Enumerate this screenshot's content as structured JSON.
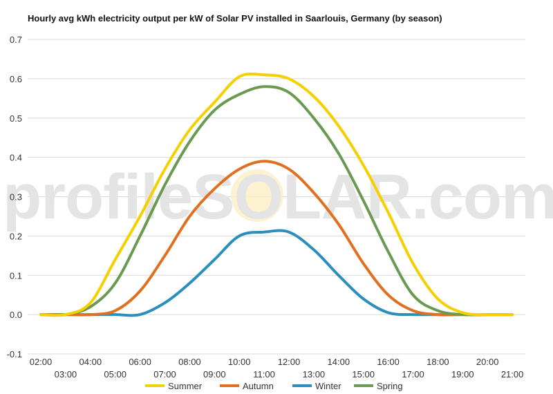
{
  "chart_data": {
    "type": "line",
    "title": "Hourly avg kWh electricity output per kW of Solar PV installed in Saarlouis, Germany (by season)",
    "xlabel": "",
    "ylabel": "",
    "ylim": [
      -0.1,
      0.7
    ],
    "yticks": [
      "-0.1",
      "0.0",
      "0.1",
      "0.2",
      "0.3",
      "0.4",
      "0.5",
      "0.6",
      "0.7"
    ],
    "x": [
      "02:00",
      "03:00",
      "04:00",
      "05:00",
      "06:00",
      "07:00",
      "08:00",
      "09:00",
      "10:00",
      "11:00",
      "12:00",
      "13:00",
      "14:00",
      "15:00",
      "16:00",
      "17:00",
      "18:00",
      "19:00",
      "20:00",
      "21:00"
    ],
    "grid": true,
    "legend": "bottom",
    "series": [
      {
        "name": "Summer",
        "color": "#f5d000",
        "values": [
          0,
          0,
          0.03,
          0.14,
          0.25,
          0.37,
          0.47,
          0.54,
          0.605,
          0.61,
          0.6,
          0.555,
          0.48,
          0.38,
          0.26,
          0.13,
          0.04,
          0.005,
          0,
          0
        ]
      },
      {
        "name": "Autumn",
        "color": "#e07020",
        "values": [
          0,
          0,
          0,
          0.01,
          0.06,
          0.15,
          0.25,
          0.32,
          0.37,
          0.39,
          0.37,
          0.31,
          0.23,
          0.13,
          0.05,
          0.01,
          0,
          0,
          0,
          0
        ]
      },
      {
        "name": "Winter",
        "color": "#2a8fbd",
        "values": [
          0,
          0,
          0,
          0,
          0,
          0.03,
          0.08,
          0.14,
          0.2,
          0.21,
          0.21,
          0.165,
          0.1,
          0.04,
          0.005,
          0,
          0,
          0,
          0,
          0
        ]
      },
      {
        "name": "Spring",
        "color": "#6a9a50",
        "values": [
          0,
          0,
          0.02,
          0.08,
          0.2,
          0.33,
          0.44,
          0.52,
          0.56,
          0.58,
          0.565,
          0.5,
          0.41,
          0.29,
          0.16,
          0.05,
          0.01,
          0,
          0,
          0
        ]
      }
    ]
  },
  "watermark": {
    "text": "profileSOLAR.com"
  }
}
